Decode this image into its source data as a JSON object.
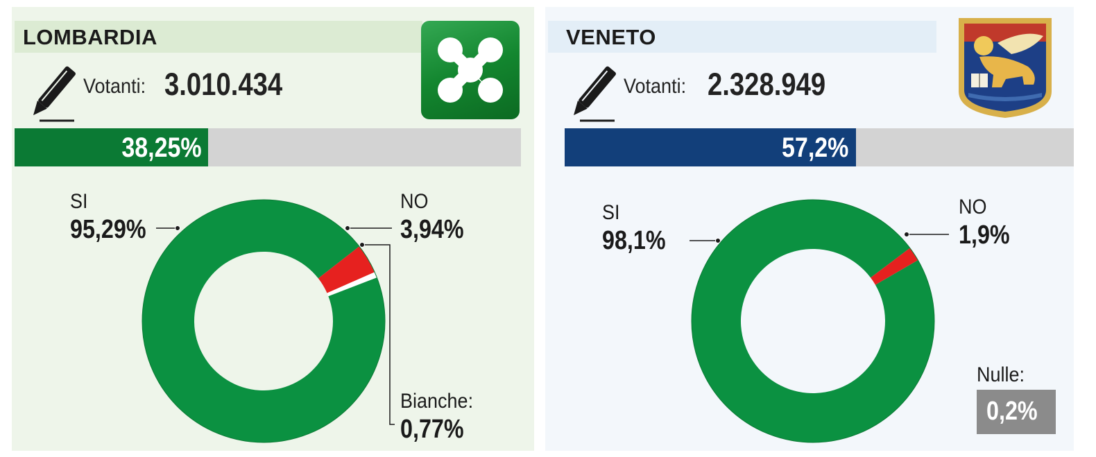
{
  "panels": [
    {
      "region": "LOMBARDIA",
      "votanti_label": "Votanti:",
      "votanti_value": "3.010.434",
      "turnout_label": "38,25%",
      "turnout_value": 38.25,
      "bar_color": "#0b7a34",
      "logo": "lombardia-rose-logo"
    },
    {
      "region": "VENETO",
      "votanti_label": "Votanti:",
      "votanti_value": "2.328.949",
      "turnout_label": "57,2%",
      "turnout_value": 57.2,
      "bar_color": "#123f7a",
      "logo": "venetian-lion-coat-of-arms",
      "nulle_label": "Nulle:",
      "nulle_value": "0,2%"
    }
  ],
  "chart_data": [
    {
      "type": "pie",
      "title": "LOMBARDIA",
      "categories": [
        "SI",
        "NO",
        "Bianche:"
      ],
      "values": [
        95.29,
        3.94,
        0.77
      ],
      "labels": [
        "95,29%",
        "3,94%",
        "0,77%"
      ],
      "colors": [
        "#0b9141",
        "#e6211f",
        "#ffffff"
      ]
    },
    {
      "type": "pie",
      "title": "VENETO",
      "categories": [
        "SI",
        "NO"
      ],
      "values": [
        98.1,
        1.9
      ],
      "labels": [
        "98,1%",
        "1,9%"
      ],
      "colors": [
        "#0b9141",
        "#e6211f"
      ]
    }
  ]
}
